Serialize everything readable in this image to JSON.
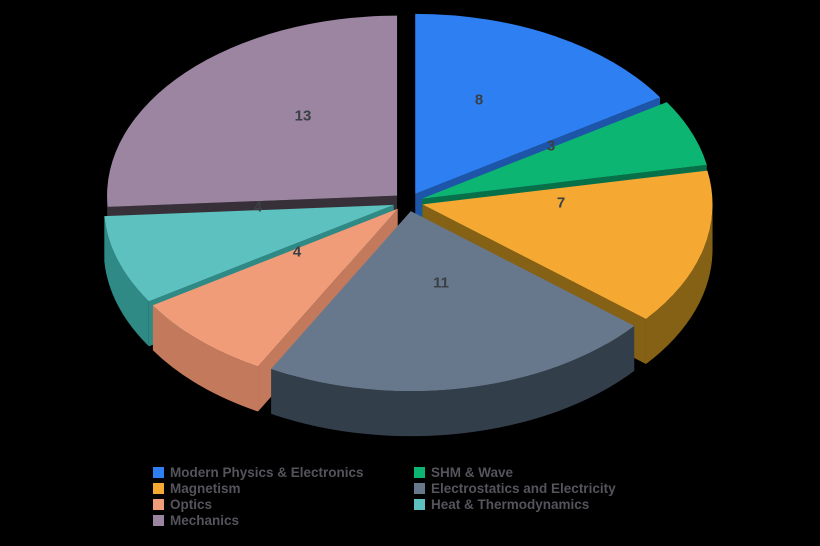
{
  "chart_data": {
    "type": "pie",
    "style": "3d-exploded",
    "direction": "clockwise",
    "start_angle_deg": 0,
    "total": 50,
    "background": "#000000",
    "value_label_color": "#3A3F45",
    "legend": {
      "position": "bottom",
      "columns": 2,
      "text_color": "#54545C"
    },
    "slices": [
      {
        "label": "Modern Physics & Electronics",
        "value": 8,
        "color": "#2E7FF2",
        "side_color": "#1D55A9"
      },
      {
        "label": "SHM & Wave",
        "value": 3,
        "color": "#0DB572",
        "side_color": "#077049"
      },
      {
        "label": "Magnetism",
        "value": 7,
        "color": "#F5A933",
        "side_color": "#856115"
      },
      {
        "label": "Electrostatics and Electricity",
        "value": 11,
        "color": "#68788C",
        "side_color": "#333E4B"
      },
      {
        "label": "Optics",
        "value": 4,
        "color": "#F19C79",
        "side_color": "#C37A5C"
      },
      {
        "label": "Heat & Thermodynamics",
        "value": 4,
        "color": "#5CC1BF",
        "side_color": "#2F8985"
      },
      {
        "label": "Mechanics",
        "value": 13,
        "color": "#9B85A1",
        "side_color": "#383039"
      }
    ]
  }
}
